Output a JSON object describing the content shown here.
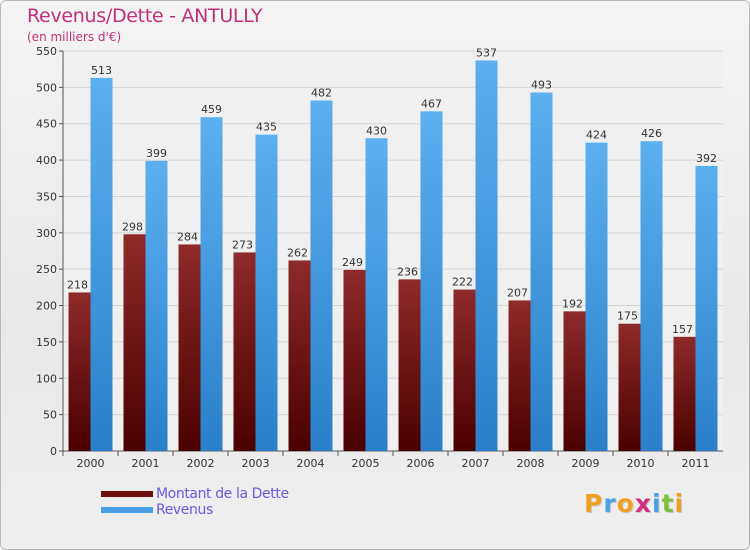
{
  "header": {
    "title": "Revenus/Dette - ANTULLY",
    "subtitle": "(en milliers d'€)"
  },
  "legend": {
    "items": [
      {
        "label": "Montant de la Dette",
        "color": "#6b0f0f"
      },
      {
        "label": "Revenus",
        "color": "#4aa0e6"
      }
    ]
  },
  "logo": {
    "letters": [
      "P",
      "r",
      "o",
      "x",
      "i",
      "t",
      "i"
    ],
    "colors": [
      "#f0a020",
      "#4aa0e6",
      "#f0a020",
      "#d23080",
      "#4aa0e6",
      "#80c040",
      "#f0a020"
    ]
  },
  "chart_data": {
    "type": "bar",
    "title": "Revenus/Dette - ANTULLY",
    "subtitle": "(en milliers d'€)",
    "categories": [
      "2000",
      "2001",
      "2002",
      "2003",
      "2004",
      "2005",
      "2006",
      "2007",
      "2008",
      "2009",
      "2010",
      "2011"
    ],
    "series": [
      {
        "name": "Montant de la Dette",
        "color": "#7a1c1c",
        "values": [
          218,
          298,
          284,
          273,
          262,
          249,
          236,
          222,
          207,
          192,
          175,
          157
        ]
      },
      {
        "name": "Revenus",
        "color": "#4aa0e6",
        "values": [
          513,
          399,
          459,
          435,
          482,
          430,
          467,
          537,
          493,
          424,
          426,
          392
        ]
      }
    ],
    "ylim": [
      0,
      550
    ],
    "yticks": [
      0,
      50,
      100,
      150,
      200,
      250,
      300,
      350,
      400,
      450,
      500,
      550
    ],
    "grid": true,
    "legend_position": "bottom-left"
  }
}
